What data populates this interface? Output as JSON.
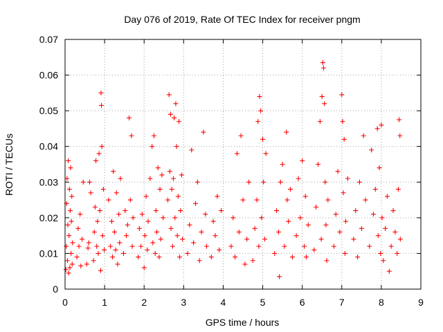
{
  "chart_data": {
    "type": "scatter",
    "title": "Day 076 of 2019, Rate Of TEC Index for receiver pngm",
    "xlabel": "GPS time / hours",
    "ylabel": "ROTI / TECUs",
    "xlim": [
      0,
      9
    ],
    "ylim": [
      0,
      0.07
    ],
    "x_ticks": [
      0,
      1,
      2,
      3,
      4,
      5,
      6,
      7,
      8,
      9
    ],
    "x_tick_labels": [
      "0",
      "1",
      "2",
      "3",
      "4",
      "5",
      "6",
      "7",
      "8",
      "9"
    ],
    "y_ticks": [
      0,
      0.01,
      0.02,
      0.03,
      0.04,
      0.05,
      0.06,
      0.07
    ],
    "y_tick_labels": [
      "0",
      "0.01",
      "0.02",
      "0.03",
      "0.04",
      "0.05",
      "0.06",
      "0.07"
    ],
    "grid": true,
    "marker": "+",
    "color": "#ff0000",
    "series": [
      {
        "name": "ROTI",
        "points": [
          [
            0.02,
            0.0055
          ],
          [
            0.03,
            0.012
          ],
          [
            0.04,
            0.024
          ],
          [
            0.05,
            0.031
          ],
          [
            0.06,
            0.008
          ],
          [
            0.07,
            0.018
          ],
          [
            0.08,
            0.036
          ],
          [
            0.09,
            0.0045
          ],
          [
            0.1,
            0.015
          ],
          [
            0.11,
            0.028
          ],
          [
            0.12,
            0.006
          ],
          [
            0.13,
            0.022
          ],
          [
            0.14,
            0.034
          ],
          [
            0.15,
            0.01
          ],
          [
            0.16,
            0.019
          ],
          [
            0.17,
            0.026
          ],
          [
            0.18,
            0.007
          ],
          [
            0.19,
            0.013
          ],
          [
            0.3,
            0.009
          ],
          [
            0.33,
            0.017
          ],
          [
            0.35,
            0.012
          ],
          [
            0.38,
            0.021
          ],
          [
            0.4,
            0.0065
          ],
          [
            0.43,
            0.014
          ],
          [
            0.46,
            0.03
          ],
          [
            0.55,
            0.007
          ],
          [
            0.58,
            0.0115
          ],
          [
            0.6,
            0.013
          ],
          [
            0.62,
            0.03
          ],
          [
            0.65,
            0.027
          ],
          [
            0.72,
            0.008
          ],
          [
            0.74,
            0.016
          ],
          [
            0.76,
            0.023
          ],
          [
            0.78,
            0.036
          ],
          [
            0.8,
            0.012
          ],
          [
            0.82,
            0.019
          ],
          [
            0.84,
            0.01
          ],
          [
            0.86,
            0.038
          ],
          [
            0.88,
            0.022
          ],
          [
            0.9,
            0.0052
          ],
          [
            0.91,
            0.055
          ],
          [
            0.92,
            0.0515
          ],
          [
            0.93,
            0.04
          ],
          [
            0.95,
            0.015
          ],
          [
            0.97,
            0.028
          ],
          [
            0.99,
            0.011
          ],
          [
            1.1,
            0.025
          ],
          [
            1.15,
            0.012
          ],
          [
            1.18,
            0.019
          ],
          [
            1.2,
            0.009
          ],
          [
            1.22,
            0.033
          ],
          [
            1.25,
            0.016
          ],
          [
            1.28,
            0.011
          ],
          [
            1.3,
            0.027
          ],
          [
            1.33,
            0.007
          ],
          [
            1.36,
            0.021
          ],
          [
            1.38,
            0.013
          ],
          [
            1.4,
            0.031
          ],
          [
            1.48,
            0.01
          ],
          [
            1.52,
            0.022
          ],
          [
            1.55,
            0.015
          ],
          [
            1.58,
            0.018
          ],
          [
            1.62,
            0.048
          ],
          [
            1.65,
            0.025
          ],
          [
            1.68,
            0.043
          ],
          [
            1.7,
            0.012
          ],
          [
            1.72,
            0.02
          ],
          [
            1.85,
            0.009
          ],
          [
            1.88,
            0.017
          ],
          [
            1.92,
            0.012
          ],
          [
            1.95,
            0.021
          ],
          [
            2.0,
            0.006
          ],
          [
            2.02,
            0.015
          ],
          [
            2.05,
            0.026
          ],
          [
            2.08,
            0.011
          ],
          [
            2.1,
            0.019
          ],
          [
            2.15,
            0.031
          ],
          [
            2.2,
            0.04
          ],
          [
            2.22,
            0.013
          ],
          [
            2.25,
            0.043
          ],
          [
            2.28,
            0.01
          ],
          [
            2.3,
            0.022
          ],
          [
            2.32,
            0.016
          ],
          [
            2.35,
            0.034
          ],
          [
            2.38,
            0.009
          ],
          [
            2.4,
            0.028
          ],
          [
            2.42,
            0.014
          ],
          [
            2.45,
            0.032
          ],
          [
            2.48,
            0.02
          ],
          [
            2.6,
            0.025
          ],
          [
            2.63,
            0.0545
          ],
          [
            2.65,
            0.033
          ],
          [
            2.67,
            0.049
          ],
          [
            2.68,
            0.017
          ],
          [
            2.7,
            0.028
          ],
          [
            2.72,
            0.012
          ],
          [
            2.74,
            0.031
          ],
          [
            2.76,
            0.048
          ],
          [
            2.78,
            0.02
          ],
          [
            2.8,
            0.052
          ],
          [
            2.82,
            0.04
          ],
          [
            2.84,
            0.015
          ],
          [
            2.86,
            0.026
          ],
          [
            2.88,
            0.047
          ],
          [
            2.9,
            0.009
          ],
          [
            2.92,
            0.022
          ],
          [
            2.95,
            0.032
          ],
          [
            2.97,
            0.014
          ],
          [
            3.1,
            0.01
          ],
          [
            3.15,
            0.018
          ],
          [
            3.2,
            0.039
          ],
          [
            3.25,
            0.013
          ],
          [
            3.3,
            0.024
          ],
          [
            3.35,
            0.03
          ],
          [
            3.4,
            0.008
          ],
          [
            3.45,
            0.016
          ],
          [
            3.5,
            0.044
          ],
          [
            3.55,
            0.021
          ],
          [
            3.58,
            0.012
          ],
          [
            3.7,
            0.009
          ],
          [
            3.75,
            0.019
          ],
          [
            3.8,
            0.015
          ],
          [
            3.85,
            0.026
          ],
          [
            3.9,
            0.011
          ],
          [
            3.95,
            0.022
          ],
          [
            4.2,
            0.012
          ],
          [
            4.25,
            0.02
          ],
          [
            4.3,
            0.009
          ],
          [
            4.35,
            0.038
          ],
          [
            4.4,
            0.016
          ],
          [
            4.45,
            0.043
          ],
          [
            4.5,
            0.025
          ],
          [
            4.55,
            0.007
          ],
          [
            4.6,
            0.014
          ],
          [
            4.65,
            0.03
          ],
          [
            4.75,
            0.008
          ],
          [
            4.8,
            0.017
          ],
          [
            4.85,
            0.025
          ],
          [
            4.88,
            0.047
          ],
          [
            4.9,
            0.012
          ],
          [
            4.92,
            0.054
          ],
          [
            4.95,
            0.05
          ],
          [
            4.97,
            0.02
          ],
          [
            5.0,
            0.042
          ],
          [
            5.02,
            0.03
          ],
          [
            5.05,
            0.014
          ],
          [
            5.08,
            0.038
          ],
          [
            5.3,
            0.01
          ],
          [
            5.35,
            0.022
          ],
          [
            5.4,
            0.016
          ],
          [
            5.42,
            0.0035
          ],
          [
            5.45,
            0.03
          ],
          [
            5.5,
            0.035
          ],
          [
            5.55,
            0.012
          ],
          [
            5.6,
            0.044
          ],
          [
            5.62,
            0.025
          ],
          [
            5.65,
            0.019
          ],
          [
            5.7,
            0.028
          ],
          [
            5.75,
            0.009
          ],
          [
            5.85,
            0.015
          ],
          [
            5.9,
            0.031
          ],
          [
            5.95,
            0.02
          ],
          [
            6.0,
            0.036
          ],
          [
            6.05,
            0.012
          ],
          [
            6.08,
            0.026
          ],
          [
            6.1,
            0.009
          ],
          [
            6.15,
            0.018
          ],
          [
            6.3,
            0.011
          ],
          [
            6.35,
            0.023
          ],
          [
            6.4,
            0.035
          ],
          [
            6.45,
            0.047
          ],
          [
            6.48,
            0.014
          ],
          [
            6.5,
            0.054
          ],
          [
            6.52,
            0.0635
          ],
          [
            6.54,
            0.062
          ],
          [
            6.56,
            0.052
          ],
          [
            6.58,
            0.03
          ],
          [
            6.6,
            0.018
          ],
          [
            6.62,
            0.008
          ],
          [
            6.65,
            0.025
          ],
          [
            6.8,
            0.012
          ],
          [
            6.85,
            0.021
          ],
          [
            6.9,
            0.033
          ],
          [
            6.95,
            0.016
          ],
          [
            7.0,
            0.0545
          ],
          [
            7.02,
            0.047
          ],
          [
            7.04,
            0.027
          ],
          [
            7.06,
            0.042
          ],
          [
            7.08,
            0.01
          ],
          [
            7.1,
            0.019
          ],
          [
            7.15,
            0.031
          ],
          [
            7.3,
            0.014
          ],
          [
            7.35,
            0.022
          ],
          [
            7.4,
            0.009
          ],
          [
            7.45,
            0.03
          ],
          [
            7.5,
            0.017
          ],
          [
            7.55,
            0.043
          ],
          [
            7.6,
            0.025
          ],
          [
            7.7,
            0.012
          ],
          [
            7.75,
            0.039
          ],
          [
            7.8,
            0.021
          ],
          [
            7.85,
            0.028
          ],
          [
            7.9,
            0.045
          ],
          [
            7.92,
            0.015
          ],
          [
            7.95,
            0.034
          ],
          [
            7.98,
            0.01
          ],
          [
            8.0,
            0.046
          ],
          [
            8.02,
            0.02
          ],
          [
            8.05,
            0.008
          ],
          [
            8.1,
            0.017
          ],
          [
            8.15,
            0.026
          ],
          [
            8.2,
            0.005
          ],
          [
            8.25,
            0.012
          ],
          [
            8.3,
            0.022
          ],
          [
            8.35,
            0.016
          ],
          [
            8.4,
            0.01
          ],
          [
            8.43,
            0.028
          ],
          [
            8.45,
            0.0475
          ],
          [
            8.47,
            0.043
          ],
          [
            8.48,
            0.014
          ]
        ]
      }
    ]
  }
}
